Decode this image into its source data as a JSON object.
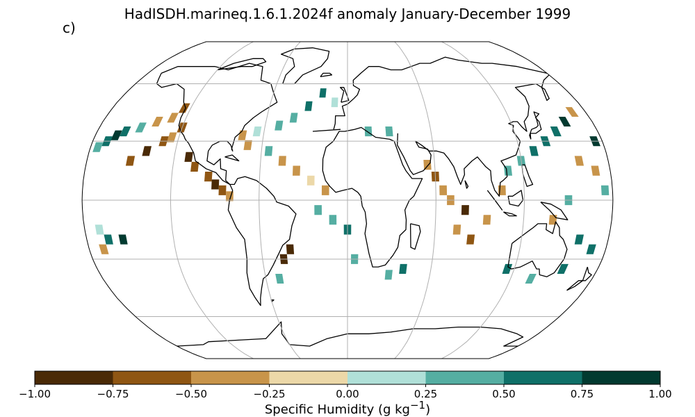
{
  "title": "HadISDH.marineq.1.6.1.2024f anomaly January-December 1999",
  "panel_label": "c)",
  "colorbar": {
    "label": "Specific Humidity (g kg",
    "label_sup": "−1",
    "label_end": ")",
    "ticks": [
      "−1.00",
      "−0.75",
      "−0.50",
      "−0.25",
      "0.00",
      "0.25",
      "0.50",
      "0.75",
      "1.00"
    ],
    "tick_values": [
      -1.0,
      -0.75,
      -0.5,
      -0.25,
      0.0,
      0.25,
      0.5,
      0.75,
      1.0
    ],
    "colors": [
      "#543005",
      "#8c510a",
      "#bf812d",
      "#dfc27d",
      "#80cdc1",
      "#35978f",
      "#01665e",
      "#003c30"
    ],
    "bin_colors": [
      "#4a2a06",
      "#8f5613",
      "#c8944a",
      "#ecd8a8",
      "#b0e0d8",
      "#55aea2",
      "#0f7068",
      "#023a30"
    ]
  },
  "chart_data": {
    "type": "heatmap",
    "projection": "Robinson",
    "variable": "Specific Humidity anomaly",
    "units": "g kg-1",
    "value_range": [
      -1.0,
      1.0
    ],
    "grid": true,
    "cells": [
      [
        -125,
        47,
        -0.6
      ],
      [
        -130,
        42,
        -0.5
      ],
      [
        -140,
        40,
        -0.3
      ],
      [
        -150,
        37,
        0.4
      ],
      [
        -160,
        35,
        0.6
      ],
      [
        -165,
        33,
        0.8
      ],
      [
        -170,
        30,
        0.5
      ],
      [
        -175,
        27,
        0.3
      ],
      [
        -120,
        37,
        -0.7
      ],
      [
        -125,
        32,
        -0.5
      ],
      [
        -130,
        30,
        -0.6
      ],
      [
        -140,
        25,
        -0.9
      ],
      [
        -150,
        20,
        -0.7
      ],
      [
        -110,
        22,
        -0.8
      ],
      [
        -105,
        17,
        -0.6
      ],
      [
        -95,
        12,
        -0.7
      ],
      [
        -90,
        8,
        -0.9
      ],
      [
        -85,
        5,
        -0.6
      ],
      [
        -80,
        2,
        -0.4
      ],
      [
        -70,
        28,
        -0.3
      ],
      [
        -75,
        33,
        -0.5
      ],
      [
        -65,
        35,
        0.2
      ],
      [
        -50,
        38,
        0.4
      ],
      [
        -40,
        42,
        0.3
      ],
      [
        -30,
        48,
        0.5
      ],
      [
        -20,
        55,
        0.6
      ],
      [
        -10,
        50,
        0.2
      ],
      [
        -55,
        25,
        0.3
      ],
      [
        -45,
        20,
        -0.3
      ],
      [
        -35,
        15,
        -0.4
      ],
      [
        -25,
        10,
        -0.2
      ],
      [
        -15,
        5,
        -0.5
      ],
      [
        -20,
        -5,
        0.3
      ],
      [
        -10,
        -10,
        0.4
      ],
      [
        0,
        -15,
        0.5
      ],
      [
        5,
        -30,
        0.3
      ],
      [
        -40,
        -25,
        -0.8
      ],
      [
        -45,
        -30,
        -0.9
      ],
      [
        -50,
        -40,
        0.3
      ],
      [
        15,
        35,
        0.4
      ],
      [
        30,
        35,
        0.3
      ],
      [
        55,
        18,
        -0.4
      ],
      [
        60,
        12,
        -0.6
      ],
      [
        65,
        5,
        -0.5
      ],
      [
        70,
        0,
        -0.3
      ],
      [
        80,
        -5,
        -0.8
      ],
      [
        75,
        -15,
        -0.4
      ],
      [
        85,
        -20,
        -0.7
      ],
      [
        95,
        -10,
        -0.4
      ],
      [
        105,
        5,
        -0.3
      ],
      [
        110,
        15,
        0.4
      ],
      [
        120,
        20,
        0.3
      ],
      [
        130,
        25,
        0.6
      ],
      [
        140,
        30,
        0.5
      ],
      [
        150,
        35,
        0.7
      ],
      [
        160,
        40,
        0.8
      ],
      [
        170,
        45,
        -0.3
      ],
      [
        175,
        30,
        0.9
      ],
      [
        160,
        20,
        -0.4
      ],
      [
        170,
        15,
        -0.5
      ],
      [
        175,
        5,
        0.3
      ],
      [
        150,
        0,
        0.4
      ],
      [
        140,
        -10,
        -0.3
      ],
      [
        160,
        -20,
        0.5
      ],
      [
        170,
        -25,
        0.6
      ],
      [
        155,
        -35,
        0.7
      ],
      [
        135,
        -40,
        0.4
      ],
      [
        115,
        -35,
        0.6
      ],
      [
        -170,
        -15,
        0.2
      ],
      [
        -165,
        -20,
        0.5
      ],
      [
        -155,
        -20,
        0.9
      ],
      [
        -170,
        -25,
        -0.3
      ],
      [
        30,
        -38,
        0.4
      ],
      [
        40,
        -35,
        0.6
      ]
    ]
  }
}
